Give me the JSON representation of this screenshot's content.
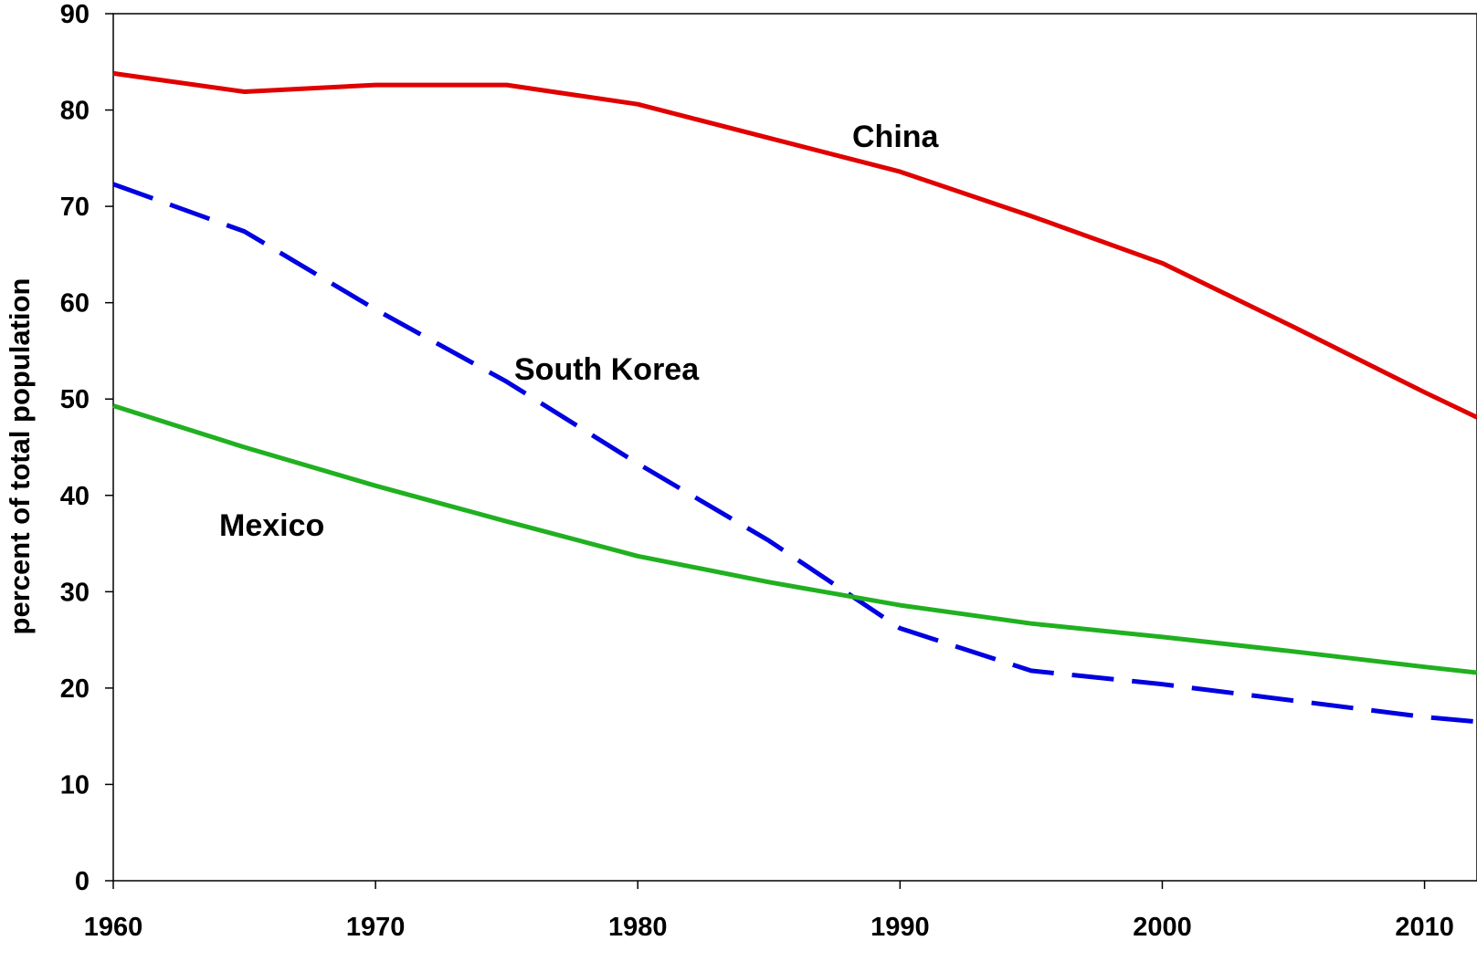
{
  "chart_data": {
    "type": "line",
    "title": "",
    "xlabel": "",
    "ylabel": "percent of total population",
    "xlim": [
      1960,
      2012
    ],
    "ylim": [
      0,
      90
    ],
    "x_ticks": [
      "1960",
      "1970",
      "1980",
      "1990",
      "2000",
      "2010"
    ],
    "y_ticks": [
      "0",
      "10",
      "20",
      "30",
      "40",
      "50",
      "60",
      "70",
      "80",
      "90"
    ],
    "grid": false,
    "legend": "none",
    "series": [
      {
        "name": "China",
        "color": "#e00000",
        "dash": "solid",
        "x": [
          1960,
          1965,
          1970,
          1975,
          1980,
          1985,
          1990,
          1995,
          2000,
          2005,
          2010,
          2012
        ],
        "values": [
          83.8,
          81.9,
          82.6,
          82.6,
          80.6,
          77.1,
          73.6,
          69.0,
          64.1,
          57.5,
          50.7,
          48.1
        ]
      },
      {
        "name": "South Korea",
        "color": "#0000e0",
        "dash": "dashed",
        "x": [
          1960,
          1965,
          1970,
          1975,
          1980,
          1985,
          1990,
          1995,
          2000,
          2005,
          2010,
          2012
        ],
        "values": [
          72.3,
          67.4,
          59.3,
          51.8,
          43.3,
          35.3,
          26.2,
          21.8,
          20.4,
          18.7,
          17.0,
          16.5
        ]
      },
      {
        "name": "Mexico",
        "color": "#20b020",
        "dash": "solid",
        "x": [
          1960,
          1965,
          1970,
          1975,
          1980,
          1985,
          1990,
          1995,
          2000,
          2005,
          2010,
          2012
        ],
        "values": [
          49.3,
          45.0,
          41.0,
          37.3,
          33.7,
          31.0,
          28.6,
          26.7,
          25.3,
          23.8,
          22.2,
          21.6
        ]
      }
    ]
  }
}
